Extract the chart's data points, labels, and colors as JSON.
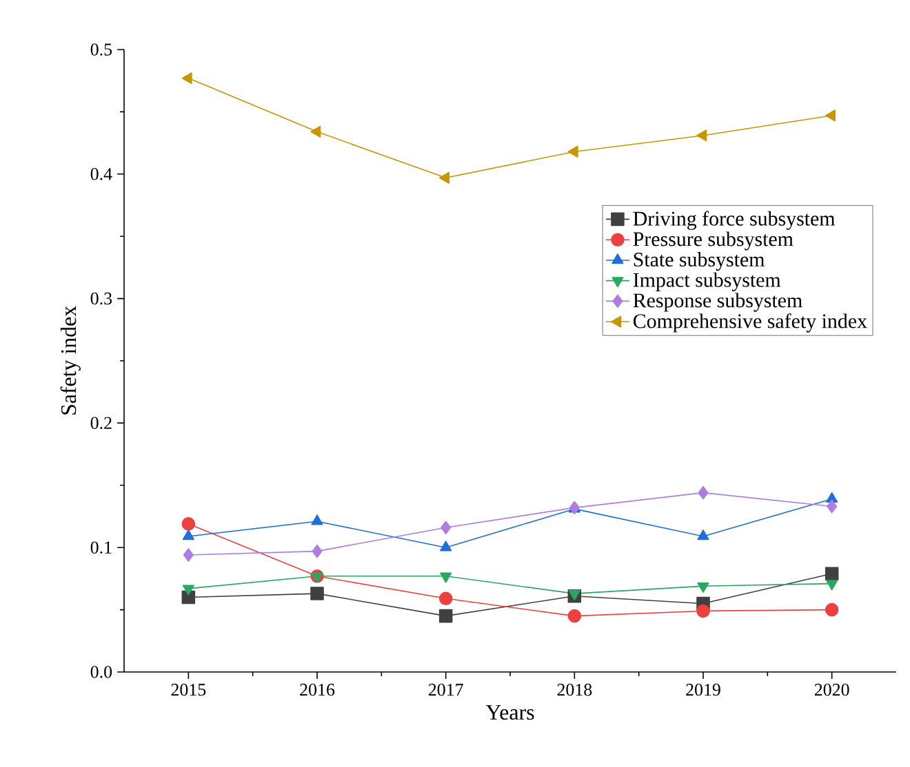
{
  "chart_data": {
    "type": "line",
    "xlabel": "Years",
    "ylabel": "Safety index",
    "x": [
      2015,
      2016,
      2017,
      2018,
      2019,
      2020
    ],
    "xlim": [
      2014.5,
      2020.5
    ],
    "xticks": [
      2015,
      2016,
      2017,
      2018,
      2019,
      2020
    ],
    "ylim": [
      0,
      0.5
    ],
    "yticks": [
      {
        "value": 0,
        "label": "0.0"
      },
      0.1,
      0.2,
      0.3,
      0.4,
      0.5
    ],
    "legend": "right",
    "grid": false,
    "line_style": "solid",
    "series": [
      {
        "name": "Driving force subsystem",
        "color": "#404040",
        "marker": "square",
        "values": [
          0.06,
          0.063,
          0.045,
          0.061,
          0.055,
          0.079
        ]
      },
      {
        "name": "Pressure subsystem",
        "color": "#ef4040",
        "marker": "circle",
        "values": [
          0.119,
          0.077,
          0.059,
          0.045,
          0.049,
          0.05
        ]
      },
      {
        "name": "State subsystem",
        "color": "#1f6fd9",
        "marker": "triangle",
        "values": [
          0.109,
          0.121,
          0.1,
          0.131,
          0.109,
          0.139
        ]
      },
      {
        "name": "Impact subsystem",
        "color": "#2aa862",
        "marker": "triangle-down",
        "values": [
          0.067,
          0.077,
          0.077,
          0.063,
          0.069,
          0.071
        ]
      },
      {
        "name": "Response subsystem",
        "color": "#b07ce0",
        "marker": "diamond",
        "values": [
          0.094,
          0.097,
          0.116,
          0.132,
          0.144,
          0.133
        ]
      },
      {
        "name": "Comprehensive safety index",
        "color": "#c99500",
        "marker": "triangle-left",
        "values": [
          0.477,
          0.434,
          0.397,
          0.418,
          0.431,
          0.447
        ]
      }
    ]
  }
}
